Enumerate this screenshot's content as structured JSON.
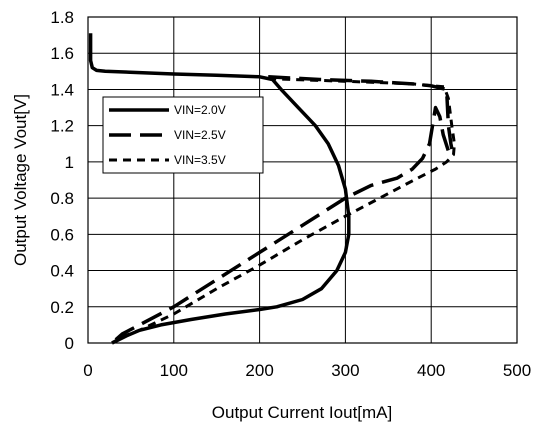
{
  "chart_data": {
    "type": "line",
    "xlabel": "Output Current Iout[mA]",
    "ylabel": "Output Voltage Vout[V]",
    "xlim": [
      0,
      500
    ],
    "ylim": [
      0,
      1.8
    ],
    "xticks": [
      0,
      100,
      200,
      300,
      400,
      500
    ],
    "yticks": [
      0,
      0.2,
      0.4,
      0.6,
      0.8,
      1,
      1.2,
      1.4,
      1.6,
      1.8
    ],
    "xtick_labels": [
      "0",
      "100",
      "200",
      "300",
      "400",
      "500"
    ],
    "ytick_labels": [
      "0",
      "0.2",
      "0.4",
      "0.6",
      "0.8",
      "1",
      "1.2",
      "1.4",
      "1.6",
      "1.8"
    ],
    "grid": true,
    "legend_position": "upper-left",
    "series": [
      {
        "name": "VIN=2.0V",
        "style": "solid",
        "color": "#000000",
        "x": [
          3,
          3,
          5,
          10,
          20,
          60,
          100,
          150,
          200,
          215,
          225,
          245,
          265,
          280,
          292,
          300,
          304,
          304,
          300,
          290,
          272,
          250,
          220,
          200,
          160,
          120,
          85,
          60,
          45,
          28
        ],
        "y": [
          1.71,
          1.56,
          1.52,
          1.505,
          1.5,
          1.493,
          1.485,
          1.478,
          1.47,
          1.455,
          1.4,
          1.3,
          1.2,
          1.1,
          0.98,
          0.85,
          0.7,
          0.6,
          0.5,
          0.4,
          0.3,
          0.24,
          0.2,
          0.185,
          0.16,
          0.13,
          0.1,
          0.07,
          0.04,
          0.0
        ]
      },
      {
        "name": "VIN=2.5V",
        "style": "long-dash",
        "color": "#000000",
        "x": [
          210,
          270,
          330,
          380,
          400,
          413,
          418,
          420,
          423,
          425,
          420,
          414,
          410,
          405,
          398,
          390,
          378,
          360,
          330,
          300,
          250,
          200,
          150,
          100,
          60,
          40,
          28
        ],
        "y": [
          1.47,
          1.455,
          1.445,
          1.43,
          1.42,
          1.405,
          1.4,
          1.2,
          1.1,
          1.05,
          1.06,
          1.15,
          1.25,
          1.3,
          1.1,
          1.02,
          0.96,
          0.91,
          0.87,
          0.8,
          0.65,
          0.5,
          0.35,
          0.2,
          0.1,
          0.05,
          0.0
        ]
      },
      {
        "name": "VIN=3.5V",
        "style": "short-dash",
        "color": "#000000",
        "x": [
          210,
          270,
          330,
          380,
          400,
          415,
          420,
          424,
          427,
          426,
          418,
          405,
          380,
          340,
          300,
          250,
          200,
          150,
          100,
          60,
          40,
          28
        ],
        "y": [
          1.46,
          1.45,
          1.44,
          1.43,
          1.42,
          1.415,
          1.35,
          1.2,
          1.1,
          1.04,
          1.0,
          0.96,
          0.9,
          0.8,
          0.7,
          0.57,
          0.43,
          0.3,
          0.16,
          0.07,
          0.035,
          0.0
        ]
      }
    ]
  }
}
